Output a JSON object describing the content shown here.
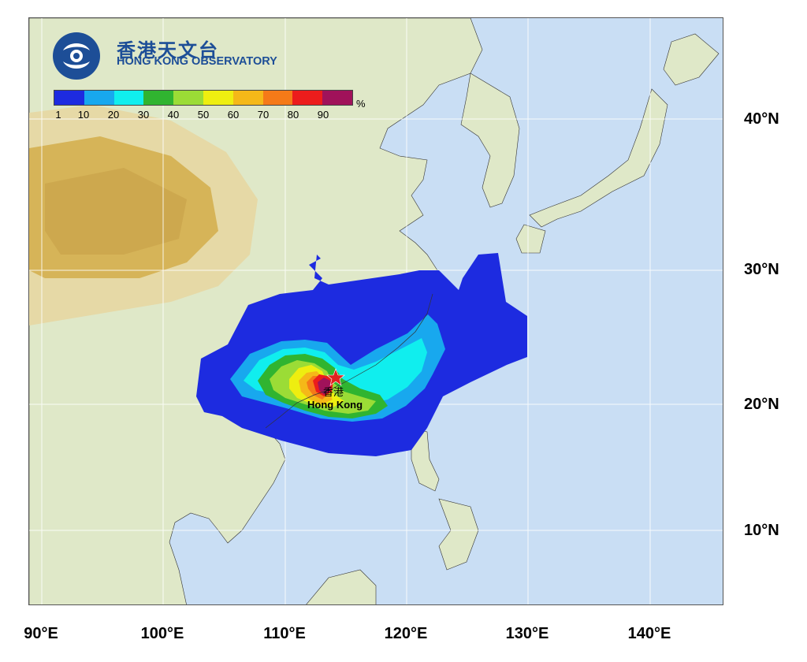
{
  "header": {
    "org_name_zh": "香港天文台",
    "org_name_en": "HONG KONG OBSERVATORY"
  },
  "legend": {
    "unit": "%",
    "ticks": [
      "1",
      "10",
      "20",
      "30",
      "40",
      "50",
      "60",
      "70",
      "80",
      "90"
    ],
    "colors": [
      "#1d2be0",
      "#18a8ee",
      "#10eeee",
      "#30b430",
      "#9bdc36",
      "#eeee10",
      "#f5b818",
      "#f57a18",
      "#ec1c1c",
      "#a0125a"
    ]
  },
  "place_label": {
    "zh": "香港",
    "en": "Hong Kong"
  },
  "axes": {
    "lat_labels": [
      "40°N",
      "30°N",
      "20°N",
      "10°N"
    ],
    "lon_labels": [
      "90°E",
      "100°E",
      "110°E",
      "120°E",
      "130°E",
      "140°E"
    ]
  },
  "map": {
    "projection_extent": {
      "lon": [
        89.5,
        146
      ],
      "lat": [
        4.5,
        47
      ]
    },
    "gridlines": "on",
    "colors": {
      "ocean": "#c9def4",
      "land_low": "#dfe8c8",
      "land_mid": "#e8dfb0",
      "plateau": "#d6b458",
      "marker": "#e02020"
    },
    "marker_icon": "star-icon"
  }
}
